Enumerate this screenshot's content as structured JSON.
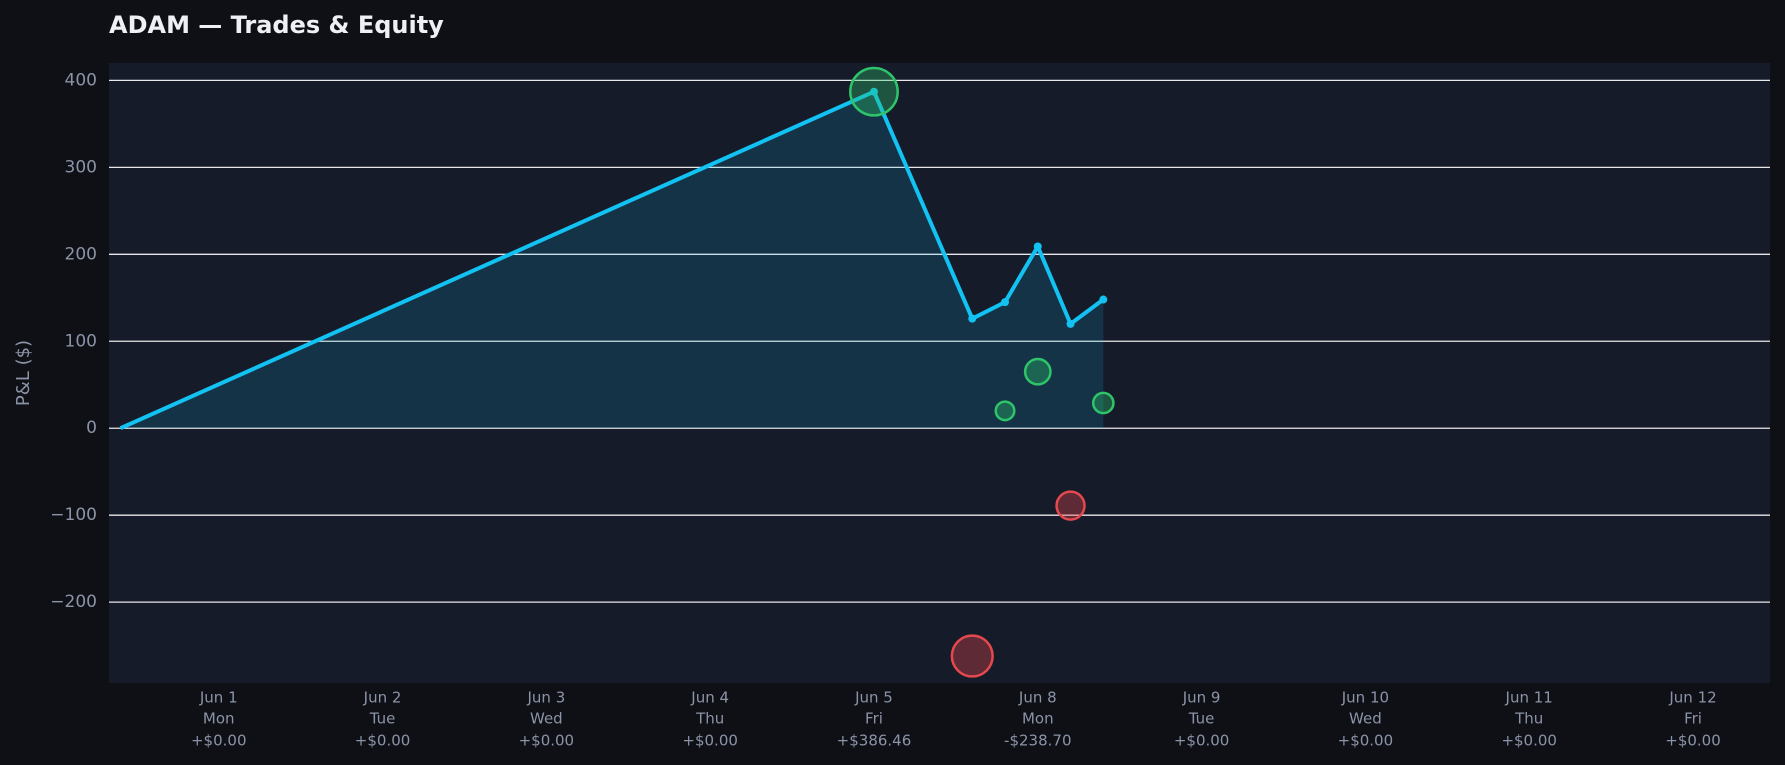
{
  "chart_data": {
    "type": "line",
    "title": "ADAM — Trades & Equity",
    "ylabel": "P&L ($)",
    "categories": [
      "Jun 1",
      "Jun 2",
      "Jun 3",
      "Jun 4",
      "Jun 5",
      "Jun 8",
      "Jun 9",
      "Jun 10",
      "Jun 11",
      "Jun 12"
    ],
    "weekdays": [
      "Mon",
      "Tue",
      "Wed",
      "Thu",
      "Fri",
      "Mon",
      "Tue",
      "Wed",
      "Thu",
      "Fri"
    ],
    "daily": {
      "values": [
        0,
        0,
        0,
        0,
        386.46,
        -238.7,
        0,
        0,
        0,
        0
      ],
      "value_labels": [
        "+$0.00",
        "+$0.00",
        "+$0.00",
        "+$0.00",
        "+$386.46",
        "-$238.70",
        "+$0.00",
        "+$0.00",
        "+$0.00",
        "+$0.00"
      ]
    },
    "xlim": [
      -0.67,
      9.47
    ],
    "ylim": [
      -293,
      420
    ],
    "yticks": [
      {
        "value": -200,
        "label": "−200"
      },
      {
        "value": -100,
        "label": "−100"
      },
      0,
      100,
      200,
      300,
      400
    ],
    "grid": true,
    "series": [
      {
        "type": "line",
        "color": "#12c2f2",
        "x": [
          -0.6,
          4,
          4.6,
          4.8,
          5,
          5.2,
          5.4
        ],
        "values": [
          0,
          387,
          126,
          145,
          209,
          120,
          148
        ]
      },
      {
        "type": "scatter",
        "positive_color": "#2ec46a",
        "negative_color": "#e5484d",
        "x": [
          4,
          4.6,
          4.8,
          5,
          5.2,
          5.4
        ],
        "values": [
          387,
          -262,
          20,
          65,
          -89,
          29
        ]
      }
    ]
  }
}
